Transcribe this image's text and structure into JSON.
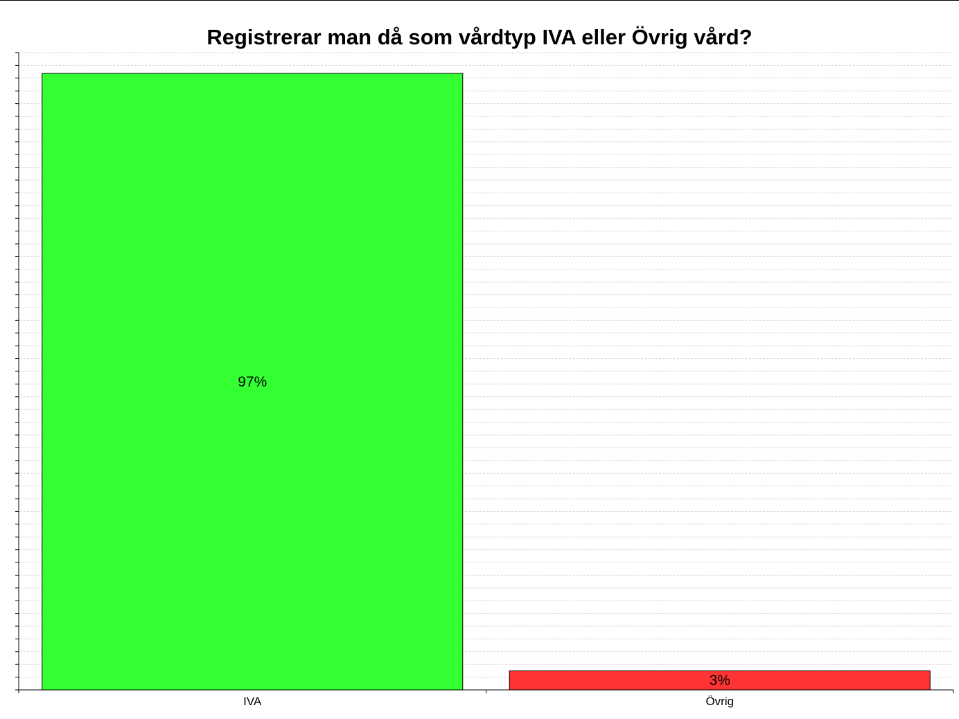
{
  "chart_data": {
    "type": "bar",
    "title": "Registrerar man då som vårdtyp IVA eller Övrig vård?",
    "xlabel": "",
    "ylabel": "",
    "categories": [
      "IVA",
      "Övrig"
    ],
    "values": [
      97,
      3
    ],
    "data_labels": [
      "97%",
      "3%"
    ],
    "unit": "%",
    "ylim": [
      0,
      100
    ],
    "grid": true,
    "show_y_tick_labels": false,
    "legend": "none",
    "colors": [
      "#33ff33",
      "#ff3333"
    ]
  }
}
